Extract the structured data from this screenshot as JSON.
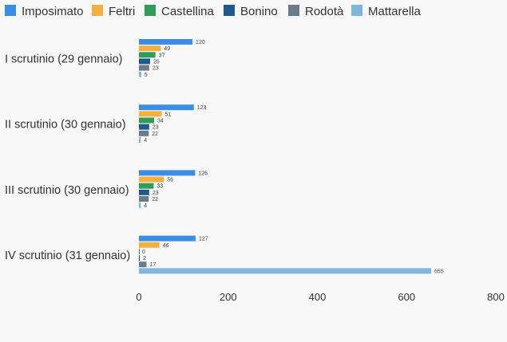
{
  "chart_data": {
    "type": "bar",
    "orientation": "horizontal",
    "categories": [
      "I scrutinio (29 gennaio)",
      "II scrutinio (30 gennaio)",
      "III scrutinio (30 gennaio)",
      "IV scrutinio (31 gennaio)"
    ],
    "series": [
      {
        "name": "Imposimato",
        "color": "#3a8ee6",
        "values": [
          120,
          123,
          126,
          127
        ]
      },
      {
        "name": "Feltri",
        "color": "#f5b041",
        "values": [
          49,
          51,
          56,
          46
        ]
      },
      {
        "name": "Castellina",
        "color": "#2e9e57",
        "values": [
          37,
          34,
          33,
          0
        ]
      },
      {
        "name": "Bonino",
        "color": "#1f5a8e",
        "values": [
          25,
          23,
          23,
          2
        ]
      },
      {
        "name": "Rodotà",
        "color": "#6c7a8a",
        "values": [
          23,
          22,
          22,
          17
        ]
      },
      {
        "name": "Mattarella",
        "color": "#7fb6dc",
        "values": [
          5,
          4,
          4,
          655
        ]
      }
    ],
    "xlim": [
      0,
      800
    ],
    "xticks": [
      "0",
      "200",
      "400",
      "600",
      "800"
    ],
    "legend_position": "top",
    "grid": false,
    "title": "",
    "xlabel": "",
    "ylabel": ""
  }
}
